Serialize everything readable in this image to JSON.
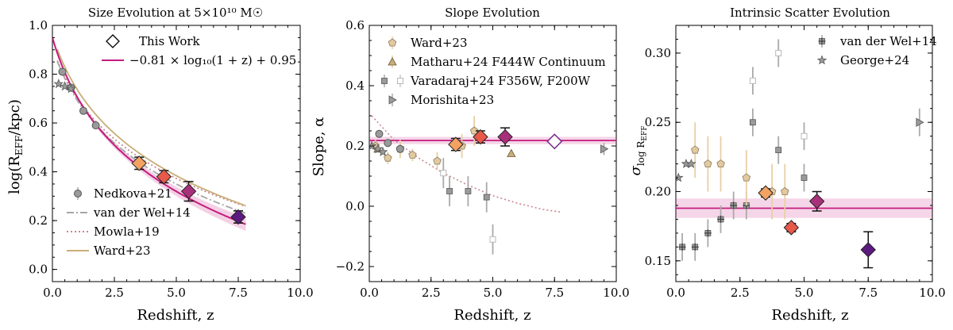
{
  "chart_data": [
    {
      "type": "line",
      "title": "Size Evolution at 5×10¹⁰ M☉",
      "xlabel": "Redshift, z",
      "ylabel": "log(R_EFF/kpc)",
      "ylabel_main": "log(R",
      "ylabel_sub": "EFF",
      "ylabel_tail": "/kpc)",
      "xlim": [
        0,
        10
      ],
      "ylim": [
        -0.05,
        1.0
      ],
      "xticks": [
        "0.0",
        "2.5",
        "5.0",
        "7.5",
        "10.0"
      ],
      "yticks": [
        "0.0",
        "0.2",
        "0.4",
        "0.6",
        "0.8",
        "1.0"
      ],
      "legend_top": [
        {
          "label": "This Work",
          "marker": "diamond"
        },
        {
          "label": "−0.81 × log₁₀(1 + z) + 0.95",
          "marker": "line",
          "color": "#c51b7d"
        }
      ],
      "legend_bottom": [
        {
          "label": "Nedkova+21",
          "marker": "circle"
        },
        {
          "label": "van der Wel+14",
          "marker": "dashdot"
        },
        {
          "label": "Mowla+19",
          "marker": "dotted"
        },
        {
          "label": "Ward+23",
          "marker": "line"
        }
      ],
      "fit": {
        "slope": -0.81,
        "intercept": 0.95,
        "xrange": [
          0,
          7.8
        ],
        "color": "#c51b7d"
      },
      "curves": [
        {
          "name": "van der Wel+14",
          "coef": [
            -0.72,
            0.91
          ],
          "xrange": [
            0.2,
            7.8
          ],
          "color": "#a6a6a6",
          "style": "dashdot"
        },
        {
          "name": "Mowla+19",
          "coef": [
            -0.69,
            0.91
          ],
          "xrange": [
            0.2,
            7.8
          ],
          "color": "#c9878f",
          "style": "dotted"
        },
        {
          "name": "Ward+23",
          "coef": [
            -0.74,
            0.96
          ],
          "xrange": [
            0.2,
            7.8
          ],
          "color": "#c8ae78",
          "style": "solid"
        }
      ],
      "series": [
        {
          "name": "This Work",
          "marker": "diamond",
          "points": [
            {
              "x": 3.5,
              "y": 0.435,
              "err": 0.025,
              "color": "#f4a261"
            },
            {
              "x": 4.5,
              "y": 0.38,
              "err": 0.025,
              "color": "#e9594a"
            },
            {
              "x": 5.5,
              "y": 0.32,
              "err": 0.04,
              "color": "#a8307a"
            },
            {
              "x": 7.5,
              "y": 0.215,
              "err": 0.025,
              "color": "#5c1a80"
            }
          ]
        },
        {
          "name": "Nedkova+21",
          "marker": "circle",
          "color": "#9a9a9a",
          "points": [
            {
              "x": 0.4,
              "y": 0.81
            },
            {
              "x": 0.75,
              "y": 0.745
            },
            {
              "x": 1.25,
              "y": 0.65
            },
            {
              "x": 1.75,
              "y": 0.59
            }
          ]
        },
        {
          "name": "George+24",
          "marker": "star",
          "color": "#9a9a9a",
          "points": [
            {
              "x": 0.25,
              "y": 0.76
            },
            {
              "x": 0.5,
              "y": 0.75
            },
            {
              "x": 0.75,
              "y": 0.74
            }
          ]
        }
      ]
    },
    {
      "type": "scatter",
      "title": "Slope Evolution",
      "xlabel": "Redshift, z",
      "ylabel": "Slope, α",
      "xlim": [
        0,
        10
      ],
      "ylim": [
        -0.25,
        0.6
      ],
      "xticks": [
        "0.0",
        "2.5",
        "5.0",
        "7.5",
        "10.0"
      ],
      "yticks": [
        "−0.2",
        "0.0",
        "0.2",
        "0.4",
        "0.6"
      ],
      "band": {
        "y": 0.218,
        "half": 0.012,
        "color": "#c51b7d"
      },
      "dashed_curve": {
        "name": "Mowla+19",
        "points": [
          [
            0.1,
            0.3
          ],
          [
            1,
            0.22
          ],
          [
            2,
            0.16
          ],
          [
            3,
            0.11
          ],
          [
            4,
            0.07
          ],
          [
            5,
            0.035
          ],
          [
            6,
            0.01
          ],
          [
            7,
            -0.01
          ],
          [
            7.8,
            -0.02
          ]
        ],
        "color": "#c9878f"
      },
      "legend": [
        {
          "label": "Ward+23",
          "marker": "pentagon"
        },
        {
          "label": "Matharu+24 F444W Continuum",
          "marker": "triangle"
        },
        {
          "label": "Varadaraj+24 F356W, F200W",
          "marker": "square-pair"
        },
        {
          "label": "Morishita+23",
          "marker": "triangle-right"
        }
      ],
      "series": [
        {
          "name": "This Work",
          "marker": "diamond",
          "points": [
            {
              "x": 3.5,
              "y": 0.205,
              "err": 0.02,
              "color": "#f4a261"
            },
            {
              "x": 4.5,
              "y": 0.23,
              "err": 0.02,
              "color": "#e9594a"
            },
            {
              "x": 5.5,
              "y": 0.23,
              "err": 0.03,
              "color": "#a8307a"
            },
            {
              "x": 7.5,
              "y": 0.215,
              "err": 0.0,
              "color": "none"
            }
          ]
        },
        {
          "name": "Ward+23",
          "marker": "pentagon",
          "color": "#e3c9a0",
          "points": [
            {
              "x": 0.25,
              "y": 0.2,
              "err": 0.02
            },
            {
              "x": 0.75,
              "y": 0.16,
              "err": 0.02
            },
            {
              "x": 1.25,
              "y": 0.19,
              "err": 0.03
            },
            {
              "x": 1.75,
              "y": 0.17,
              "err": 0.02
            },
            {
              "x": 2.75,
              "y": 0.15,
              "err": 0.03
            },
            {
              "x": 3.75,
              "y": 0.2,
              "err": 0.04
            },
            {
              "x": 4.25,
              "y": 0.25,
              "err": 0.05
            }
          ]
        },
        {
          "name": "Matharu+24 F444W Continuum",
          "marker": "triangle",
          "color": "#c8ae78",
          "points": [
            {
              "x": 0.35,
              "y": 0.19
            },
            {
              "x": 5.75,
              "y": 0.175
            }
          ]
        },
        {
          "name": "Varadaraj+24 F356W",
          "marker": "square",
          "color": "#9a9a9a",
          "points": [
            {
              "x": 3.25,
              "y": 0.05,
              "err": 0.05
            },
            {
              "x": 4.0,
              "y": 0.05,
              "err": 0.05
            },
            {
              "x": 4.75,
              "y": 0.03,
              "err": 0.05
            }
          ]
        },
        {
          "name": "Varadaraj+24 F200W",
          "marker": "square-open",
          "color": "#b8b8b8",
          "points": [
            {
              "x": 3.0,
              "y": 0.11,
              "err": 0.05
            },
            {
              "x": 5.0,
              "y": -0.11,
              "err": 0.05
            }
          ]
        },
        {
          "name": "Morishita+23",
          "marker": "triangle-right",
          "color": "#9a9a9a",
          "points": [
            {
              "x": 9.5,
              "y": 0.19,
              "err": 0.02
            }
          ]
        },
        {
          "name": "Nedkova+21",
          "marker": "circle",
          "color": "#9a9a9a",
          "points": [
            {
              "x": 0.4,
              "y": 0.24
            },
            {
              "x": 0.75,
              "y": 0.21
            },
            {
              "x": 1.25,
              "y": 0.19
            }
          ]
        },
        {
          "name": "George+24",
          "marker": "star",
          "color": "#9a9a9a",
          "points": [
            {
              "x": 0.1,
              "y": 0.2
            },
            {
              "x": 0.35,
              "y": 0.19
            },
            {
              "x": 0.55,
              "y": 0.18
            }
          ]
        }
      ]
    },
    {
      "type": "scatter",
      "title": "Intrinsic Scatter Evolution",
      "xlabel": "Redshift, z",
      "ylabel": "σ_log R_EFF",
      "ylabel_main": "σ",
      "ylabel_sub": "log R",
      "ylabel_subsub": "EFF",
      "xlim": [
        0,
        10
      ],
      "ylim": [
        0.135,
        0.32
      ],
      "xticks": [
        "0.0",
        "2.5",
        "5.0",
        "7.5",
        "10.0"
      ],
      "yticks": [
        "0.15",
        "0.20",
        "0.25",
        "0.30"
      ],
      "band": {
        "y": 0.188,
        "half": 0.007,
        "color": "#c51b7d"
      },
      "legend": [
        {
          "label": "van der Wel+14",
          "marker": "plus-square"
        },
        {
          "label": "George+24",
          "marker": "star"
        }
      ],
      "series": [
        {
          "name": "This Work",
          "marker": "diamond",
          "points": [
            {
              "x": 3.5,
              "y": 0.199,
              "err": 0.003,
              "color": "#f4a261"
            },
            {
              "x": 4.5,
              "y": 0.174,
              "err": 0.003,
              "color": "#e9594a"
            },
            {
              "x": 5.5,
              "y": 0.193,
              "err": 0.007,
              "color": "#a8307a"
            },
            {
              "x": 7.5,
              "y": 0.158,
              "err": 0.013,
              "color": "#5c1a80"
            }
          ]
        },
        {
          "name": "van der Wel+14",
          "marker": "plus-square",
          "color": "#9a9a9a",
          "points": [
            {
              "x": 0.25,
              "y": 0.16,
              "err": 0.01
            },
            {
              "x": 0.75,
              "y": 0.16,
              "err": 0.01
            },
            {
              "x": 1.25,
              "y": 0.17,
              "err": 0.01
            },
            {
              "x": 1.75,
              "y": 0.18,
              "err": 0.01
            },
            {
              "x": 2.25,
              "y": 0.19,
              "err": 0.01
            },
            {
              "x": 2.75,
              "y": 0.19,
              "err": 0.01
            }
          ]
        },
        {
          "name": "Ward+23",
          "marker": "pentagon",
          "color": "#e3c9a0",
          "points": [
            {
              "x": 0.75,
              "y": 0.23,
              "err": 0.02
            },
            {
              "x": 1.25,
              "y": 0.22,
              "err": 0.02
            },
            {
              "x": 1.75,
              "y": 0.22,
              "err": 0.02
            },
            {
              "x": 2.75,
              "y": 0.21,
              "err": 0.02
            },
            {
              "x": 3.75,
              "y": 0.2,
              "err": 0.02
            },
            {
              "x": 4.25,
              "y": 0.2,
              "err": 0.02
            }
          ]
        },
        {
          "name": "Varadaraj+24 F356W",
          "marker": "square",
          "color": "#9a9a9a",
          "points": [
            {
              "x": 3.0,
              "y": 0.25,
              "err": 0.01
            },
            {
              "x": 4.0,
              "y": 0.23,
              "err": 0.01
            },
            {
              "x": 5.0,
              "y": 0.21,
              "err": 0.01
            }
          ]
        },
        {
          "name": "Varadaraj+24 F200W",
          "marker": "square-open",
          "color": "#b8b8b8",
          "points": [
            {
              "x": 3.0,
              "y": 0.28,
              "err": 0.01
            },
            {
              "x": 4.0,
              "y": 0.3,
              "err": 0.01
            },
            {
              "x": 5.0,
              "y": 0.24,
              "err": 0.01
            }
          ]
        },
        {
          "name": "Morishita+23",
          "marker": "triangle-right",
          "color": "#9a9a9a",
          "points": [
            {
              "x": 9.5,
              "y": 0.25,
              "err": 0.01
            }
          ]
        },
        {
          "name": "George+24",
          "marker": "star",
          "color": "#9a9a9a",
          "points": [
            {
              "x": 0.1,
              "y": 0.21
            },
            {
              "x": 0.4,
              "y": 0.22
            },
            {
              "x": 0.6,
              "y": 0.22
            }
          ]
        }
      ]
    }
  ]
}
